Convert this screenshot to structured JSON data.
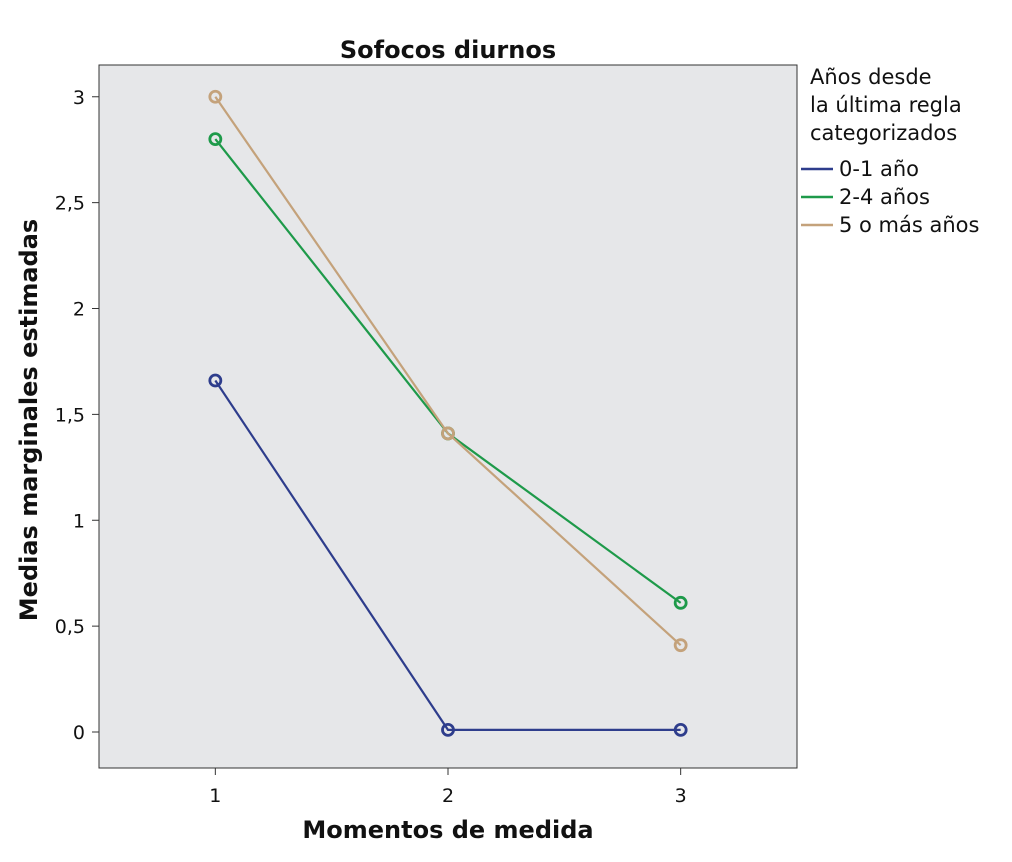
{
  "chart_data": {
    "type": "line",
    "title": "Sofocos diurnos",
    "xlabel": "Momentos de medida",
    "ylabel": "Medias marginales estimadas",
    "categories": [
      "1",
      "2",
      "3"
    ],
    "x_tick_labels": [
      "1",
      "2",
      "3"
    ],
    "y_ticks": [
      0,
      0.5,
      1,
      1.5,
      2,
      2.5,
      3
    ],
    "y_tick_labels": [
      "0",
      "0,5",
      "1",
      "1,5",
      "2",
      "2,5",
      "3"
    ],
    "ylim": [
      -0.17,
      3.15
    ],
    "xlim": [
      0.5,
      3.5
    ],
    "grid": false,
    "legend": {
      "title_lines": [
        "Años desde",
        "la última regla",
        "categorizados"
      ],
      "placement": "right"
    },
    "series": [
      {
        "name": "0-1 año",
        "color": "#2e3d8c",
        "values": [
          1.66,
          0.01,
          0.01
        ]
      },
      {
        "name": "2-4 años",
        "color": "#1e9a4a",
        "values": [
          2.8,
          1.41,
          0.61
        ]
      },
      {
        "name": "5 o más años",
        "color": "#c4a27b",
        "values": [
          3.0,
          1.41,
          0.41
        ]
      }
    ],
    "colors": {
      "plot_background": "#e6e7e9",
      "frame": "#333333",
      "text": "#111111"
    }
  }
}
